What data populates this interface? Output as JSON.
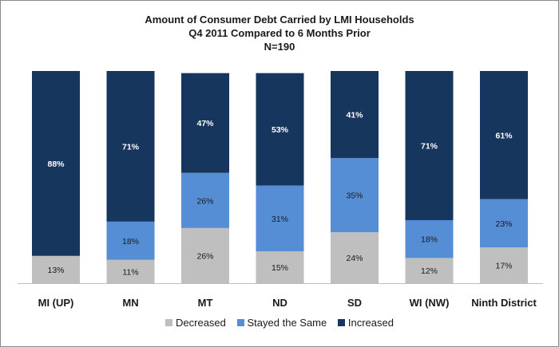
{
  "colors": {
    "decreased": "#bfbfbf",
    "stayed": "#558ed5",
    "increased": "#17365d",
    "label_dark": "#1a1a1a",
    "label_light": "#ffffff"
  },
  "chart_data": {
    "type": "bar",
    "stacked": true,
    "title_lines": [
      "Amount of Consumer Debt Carried by LMI Households",
      "Q4 2011 Compared to 6 Months Prior",
      "N=190"
    ],
    "categories": [
      "MI (UP)",
      "MN",
      "MT",
      "ND",
      "SD",
      "WI (NW)",
      "Ninth District"
    ],
    "series": [
      {
        "name": "Decreased",
        "values": [
          13,
          11,
          26,
          15,
          24,
          12,
          17
        ]
      },
      {
        "name": "Stayed the Same",
        "values": [
          0,
          18,
          26,
          31,
          35,
          18,
          23
        ]
      },
      {
        "name": "Increased",
        "values": [
          88,
          71,
          47,
          53,
          41,
          71,
          61
        ]
      }
    ],
    "value_suffix": "%",
    "ylim": [
      0,
      100
    ],
    "legend_position": "bottom",
    "grid": false
  }
}
